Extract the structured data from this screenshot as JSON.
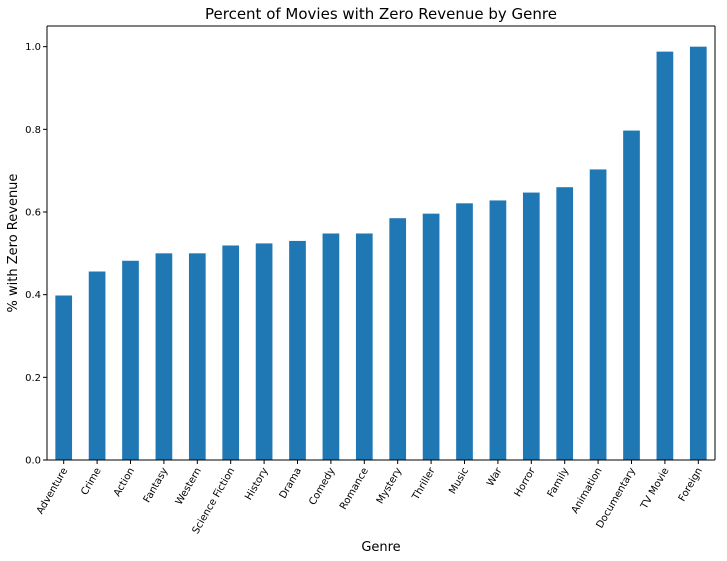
{
  "chart_data": {
    "type": "bar",
    "title": "Percent of Movies with Zero Revenue by Genre",
    "xlabel": "Genre",
    "ylabel": "% with Zero Revenue",
    "categories": [
      "Adventure",
      "Crime",
      "Action",
      "Fantasy",
      "Western",
      "Science Fiction",
      "History",
      "Drama",
      "Comedy",
      "Romance",
      "Mystery",
      "Thriller",
      "Music",
      "War",
      "Horror",
      "Family",
      "Animation",
      "Documentary",
      "TV Movie",
      "Foreign"
    ],
    "values": [
      0.398,
      0.456,
      0.482,
      0.5,
      0.5,
      0.519,
      0.524,
      0.53,
      0.548,
      0.548,
      0.585,
      0.596,
      0.621,
      0.628,
      0.647,
      0.66,
      0.703,
      0.797,
      0.988,
      1.0
    ],
    "ylim": [
      0,
      1.05
    ],
    "yticks": [
      "0.0",
      "0.2",
      "0.4",
      "0.6",
      "0.8",
      "1.0"
    ],
    "grid": false,
    "legend": "none",
    "bar_color": "#1f77b4"
  }
}
